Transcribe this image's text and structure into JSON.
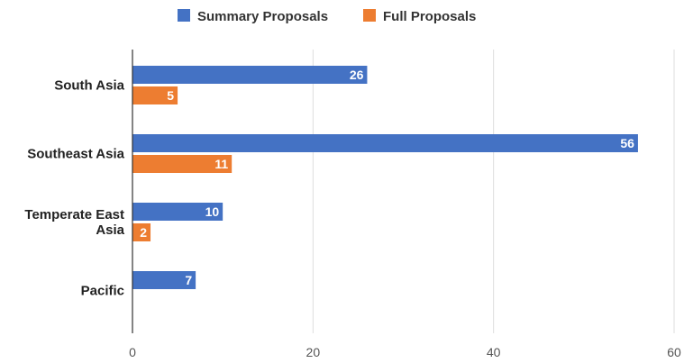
{
  "chart_data": {
    "type": "bar",
    "orientation": "horizontal",
    "categories": [
      [
        "South Asia"
      ],
      [
        "Southeast Asia"
      ],
      [
        "Temperate East",
        "Asia"
      ],
      [
        "Pacific"
      ]
    ],
    "series": [
      {
        "name": "Summary Proposals",
        "color": "#4472c4",
        "values": [
          26,
          56,
          10,
          7
        ]
      },
      {
        "name": "Full Proposals",
        "color": "#ed7d31",
        "values": [
          5,
          11,
          2,
          null
        ]
      }
    ],
    "xlim": [
      0,
      60
    ],
    "xticks": [
      0,
      20,
      40,
      60
    ],
    "legend": "top-center",
    "grid": true
  }
}
